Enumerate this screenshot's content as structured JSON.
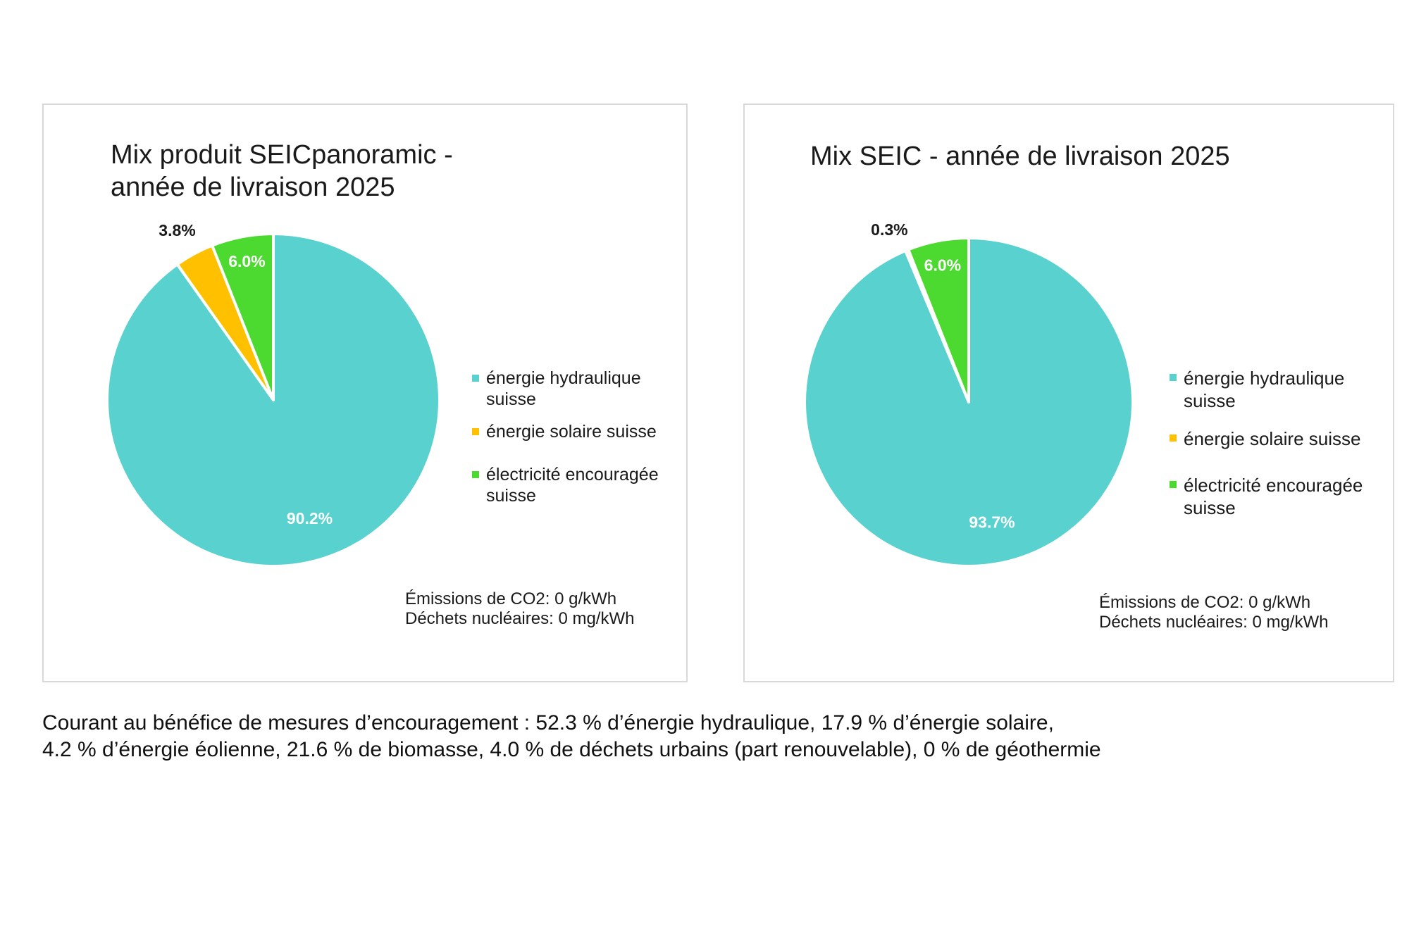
{
  "colors": {
    "hydro": "#59d2cf",
    "solar": "#ffc000",
    "encouraged": "#4cd930",
    "label_inside": "#ffffff",
    "label_outside": "#1a1a1a"
  },
  "chart_data": [
    {
      "type": "pie",
      "title": "Mix produit SEICpanoramic -\nannée de livraison 2025",
      "slices": [
        {
          "label": "énergie hydraulique suisse",
          "value": 90.2,
          "display": "90.2%",
          "color_key": "hydro"
        },
        {
          "label": "énergie solaire suisse",
          "value": 3.8,
          "display": "3.8%",
          "color_key": "solar"
        },
        {
          "label": "électricité encouragée suisse",
          "value": 6.0,
          "display": "6.0%",
          "color_key": "encouraged"
        }
      ],
      "legend_position": "right",
      "notes": [
        "Émissions de CO2: 0 g/kWh",
        "Déchets nucléaires: 0 mg/kWh"
      ]
    },
    {
      "type": "pie",
      "title": "Mix SEIC - année de livraison 2025",
      "slices": [
        {
          "label": "énergie hydraulique suisse",
          "value": 93.7,
          "display": "93.7%",
          "color_key": "hydro"
        },
        {
          "label": "énergie solaire suisse",
          "value": 0.3,
          "display": "0.3%",
          "color_key": "solar"
        },
        {
          "label": "électricité encouragée suisse",
          "value": 6.0,
          "display": "6.0%",
          "color_key": "encouraged"
        }
      ],
      "legend_position": "right",
      "notes": [
        "Émissions de CO2: 0 g/kWh",
        "Déchets nucléaires: 0 mg/kWh"
      ]
    }
  ],
  "legend": {
    "hydro_lines": [
      "énergie hydraulique",
      "suisse"
    ],
    "solar_lines": [
      "énergie solaire suisse"
    ],
    "encouraged_lines": [
      "électricité encouragée",
      "suisse"
    ]
  },
  "footnote": {
    "line1": "Courant au bénéfice de mesures d’encouragement : 52.3 % d’énergie hydraulique, 17.9 % d’énergie solaire,",
    "line2": "4.2 % d’énergie éolienne, 21.6 % de biomasse, 4.0 % de déchets urbains (part renouvelable), 0 % de géothermie"
  }
}
